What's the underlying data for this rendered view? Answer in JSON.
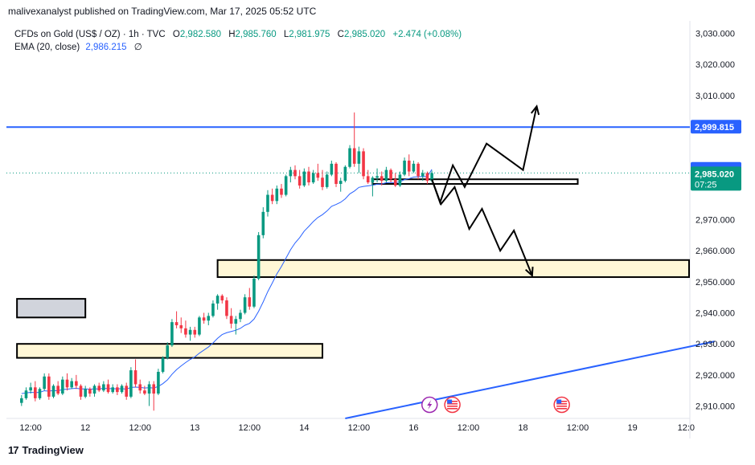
{
  "header": {
    "publish_text": "malivexanalyst published on TradingView.com, Mar 17, 2025 05:52 UTC"
  },
  "legend": {
    "symbol": "CFDs on Gold (US$ / OZ) · 1h · TVC",
    "o_label": "O",
    "o_value": "2,982.580",
    "h_label": "H",
    "h_value": "2,985.760",
    "l_label": "L",
    "l_value": "2,981.975",
    "c_label": "C",
    "c_value": "2,985.020",
    "change": "+2.474 (+0.08%)",
    "ema_label": "EMA (20, close)",
    "ema_value": "2,986.215",
    "ema_extra": "∅"
  },
  "footer": {
    "logo_mark": "17",
    "brand": "TradingView"
  },
  "colors": {
    "up": "#089981",
    "down": "#f23645",
    "ema": "#2962ff",
    "hline": "#2962ff",
    "zone_fill": "#fff7d6",
    "zone_gray": "#d1d4dc",
    "axis_text": "#131722",
    "grid": "#f0f3fa"
  },
  "chart_data": {
    "type": "candlestick",
    "symbol": "CFDs on Gold (US$ / OZ)",
    "interval": "1h",
    "ylim": [
      2906,
      3034
    ],
    "y_ticks": [
      2910,
      2920,
      2930,
      2940,
      2950,
      2960,
      2970,
      2980,
      2990,
      3000,
      3010,
      3020,
      3030
    ],
    "y_tick_labels": [
      "2,910.000",
      "2,920.000",
      "2,930.000",
      "2,940.000",
      "2,950.000",
      "2,960.000",
      "2,970.000",
      "",
      "",
      "",
      "3,010.000",
      "3,020.000",
      "3,030.000"
    ],
    "x_tick_labels": [
      "12:00",
      "12",
      "12:00",
      "13",
      "12:00",
      "14",
      "12:00",
      "16",
      "12:00",
      "18",
      "12:00",
      "19",
      "12:0"
    ],
    "x_tick_bars": [
      2,
      14,
      26,
      38,
      50,
      62,
      74,
      86,
      98,
      110,
      122,
      134,
      146
    ],
    "candles": [
      [
        2911.0,
        2913.5,
        2910.0,
        2912.5
      ],
      [
        2912.5,
        2916.0,
        2912.0,
        2915.0
      ],
      [
        2915.0,
        2917.5,
        2914.0,
        2916.0
      ],
      [
        2916.0,
        2918.0,
        2911.5,
        2912.5
      ],
      [
        2912.5,
        2916.0,
        2912.0,
        2915.5
      ],
      [
        2915.5,
        2920.5,
        2915.0,
        2919.5
      ],
      [
        2919.5,
        2920.5,
        2912.0,
        2913.0
      ],
      [
        2913.0,
        2917.0,
        2912.5,
        2916.5
      ],
      [
        2916.5,
        2918.0,
        2913.5,
        2914.0
      ],
      [
        2914.0,
        2919.5,
        2913.5,
        2918.5
      ],
      [
        2918.5,
        2920.5,
        2915.0,
        2916.0
      ],
      [
        2916.0,
        2919.0,
        2915.5,
        2918.0
      ],
      [
        2918.0,
        2920.0,
        2915.5,
        2916.5
      ],
      [
        2916.5,
        2917.0,
        2912.0,
        2913.0
      ],
      [
        2913.0,
        2916.5,
        2912.5,
        2915.5
      ],
      [
        2915.5,
        2916.0,
        2913.0,
        2914.0
      ],
      [
        2914.0,
        2917.0,
        2913.0,
        2916.5
      ],
      [
        2916.5,
        2917.5,
        2914.5,
        2915.0
      ],
      [
        2915.0,
        2918.0,
        2914.5,
        2917.0
      ],
      [
        2917.0,
        2918.5,
        2914.0,
        2914.5
      ],
      [
        2914.5,
        2917.0,
        2914.0,
        2916.0
      ],
      [
        2916.0,
        2917.0,
        2913.5,
        2914.5
      ],
      [
        2914.5,
        2917.0,
        2914.0,
        2916.5
      ],
      [
        2916.5,
        2917.5,
        2912.0,
        2913.0
      ],
      [
        2913.0,
        2922.5,
        2912.5,
        2921.5
      ],
      [
        2921.5,
        2925.0,
        2916.0,
        2917.0
      ],
      [
        2917.0,
        2918.5,
        2914.0,
        2915.0
      ],
      [
        2915.0,
        2916.5,
        2913.5,
        2914.0
      ],
      [
        2914.0,
        2918.0,
        2910.0,
        2917.0
      ],
      [
        2917.0,
        2918.0,
        2908.5,
        2914.0
      ],
      [
        2914.0,
        2922.0,
        2913.5,
        2921.0
      ],
      [
        2921.0,
        2926.0,
        2920.5,
        2925.5
      ],
      [
        2925.5,
        2930.5,
        2925.0,
        2929.5
      ],
      [
        2929.5,
        2938.0,
        2929.0,
        2937.0
      ],
      [
        2937.0,
        2940.5,
        2935.0,
        2936.0
      ],
      [
        2936.0,
        2938.5,
        2933.5,
        2935.0
      ],
      [
        2935.0,
        2937.5,
        2932.0,
        2933.0
      ],
      [
        2933.0,
        2935.5,
        2931.0,
        2934.5
      ],
      [
        2934.5,
        2935.5,
        2932.0,
        2933.0
      ],
      [
        2933.0,
        2939.0,
        2932.5,
        2938.5
      ],
      [
        2938.5,
        2940.0,
        2936.5,
        2937.5
      ],
      [
        2937.5,
        2940.0,
        2936.0,
        2939.0
      ],
      [
        2939.0,
        2944.0,
        2938.5,
        2943.0
      ],
      [
        2943.0,
        2946.0,
        2941.0,
        2945.5
      ],
      [
        2945.5,
        2946.0,
        2943.0,
        2944.0
      ],
      [
        2944.0,
        2945.0,
        2938.0,
        2939.0
      ],
      [
        2939.0,
        2941.5,
        2935.0,
        2936.5
      ],
      [
        2936.5,
        2939.0,
        2933.0,
        2938.0
      ],
      [
        2938.0,
        2941.0,
        2937.0,
        2940.0
      ],
      [
        2940.0,
        2946.0,
        2939.5,
        2945.0
      ],
      [
        2945.0,
        2948.0,
        2941.0,
        2942.0
      ],
      [
        2942.0,
        2952.0,
        2941.5,
        2951.0
      ],
      [
        2951.0,
        2966.0,
        2950.5,
        2965.0
      ],
      [
        2965.0,
        2974.0,
        2964.0,
        2972.5
      ],
      [
        2972.5,
        2979.5,
        2971.0,
        2978.0
      ],
      [
        2978.0,
        2980.0,
        2975.0,
        2976.0
      ],
      [
        2976.0,
        2981.0,
        2975.0,
        2980.0
      ],
      [
        2980.0,
        2981.5,
        2977.0,
        2978.0
      ],
      [
        2978.0,
        2984.5,
        2977.5,
        2984.0
      ],
      [
        2984.0,
        2987.0,
        2982.0,
        2986.0
      ],
      [
        2986.0,
        2987.5,
        2983.0,
        2984.0
      ],
      [
        2984.0,
        2986.0,
        2980.0,
        2981.0
      ],
      [
        2981.0,
        2986.5,
        2980.5,
        2985.5
      ],
      [
        2985.5,
        2987.0,
        2981.0,
        2982.0
      ],
      [
        2982.0,
        2986.0,
        2981.5,
        2985.0
      ],
      [
        2985.0,
        2988.0,
        2982.5,
        2983.5
      ],
      [
        2983.5,
        2986.0,
        2979.5,
        2980.5
      ],
      [
        2980.5,
        2985.5,
        2980.0,
        2984.5
      ],
      [
        2984.5,
        2989.0,
        2984.0,
        2988.0
      ],
      [
        2988.0,
        2988.5,
        2980.5,
        2981.5
      ],
      [
        2981.5,
        2983.5,
        2979.0,
        2982.5
      ],
      [
        2982.5,
        2987.5,
        2982.0,
        2987.0
      ],
      [
        2987.0,
        2994.0,
        2986.5,
        2993.0
      ],
      [
        2993.0,
        3004.5,
        2987.0,
        2988.0
      ],
      [
        2988.0,
        2993.5,
        2985.0,
        2992.0
      ],
      [
        2992.0,
        2993.0,
        2983.0,
        2984.0
      ],
      [
        2984.0,
        2986.0,
        2981.5,
        2982.0
      ],
      [
        2982.0,
        2984.0,
        2977.5,
        2983.5
      ],
      [
        2983.5,
        2986.5,
        2982.0,
        2984.0
      ],
      [
        2984.0,
        2985.5,
        2981.0,
        2982.5
      ],
      [
        2982.5,
        2987.0,
        2982.0,
        2986.0
      ],
      [
        2986.0,
        2986.5,
        2982.0,
        2983.0
      ],
      [
        2983.0,
        2985.0,
        2980.5,
        2981.0
      ],
      [
        2981.0,
        2985.5,
        2980.5,
        2984.5
      ],
      [
        2984.5,
        2990.0,
        2984.0,
        2989.0
      ],
      [
        2989.0,
        2991.0,
        2984.0,
        2985.5
      ],
      [
        2985.5,
        2989.0,
        2985.0,
        2988.0
      ],
      [
        2988.0,
        2988.5,
        2983.0,
        2984.0
      ],
      [
        2984.0,
        2986.0,
        2982.5,
        2985.0
      ],
      [
        2985.0,
        2985.5,
        2981.5,
        2982.5
      ],
      [
        2982.5,
        2985.8,
        2982.0,
        2985.0
      ]
    ],
    "ema20": [
      2914.0,
      2914.2,
      2914.4,
      2914.3,
      2914.4,
      2914.9,
      2914.8,
      2915.0,
      2914.9,
      2915.3,
      2915.4,
      2915.6,
      2915.7,
      2915.5,
      2915.5,
      2915.4,
      2915.5,
      2915.5,
      2915.7,
      2915.6,
      2915.6,
      2915.5,
      2915.6,
      2915.4,
      2916.0,
      2916.1,
      2916.0,
      2915.8,
      2915.9,
      2915.8,
      2916.3,
      2917.2,
      2918.4,
      2920.2,
      2921.7,
      2922.9,
      2924.0,
      2925.0,
      2925.8,
      2927.0,
      2928.0,
      2929.0,
      2930.3,
      2931.8,
      2933.0,
      2933.6,
      2934.0,
      2934.4,
      2935.0,
      2936.0,
      2936.6,
      2938.0,
      2940.5,
      2943.5,
      2946.8,
      2949.6,
      2952.5,
      2954.9,
      2957.6,
      2960.3,
      2962.5,
      2964.2,
      2966.3,
      2967.8,
      2969.4,
      2970.7,
      2971.6,
      2972.8,
      2974.3,
      2974.9,
      2975.6,
      2976.7,
      2978.3,
      2979.2,
      2980.4,
      2980.7,
      2980.9,
      2981.1,
      2981.4,
      2981.5,
      2981.9,
      2982.0,
      2981.9,
      2982.2,
      2982.9,
      2983.2,
      2983.7,
      2983.8,
      2983.9,
      2983.8,
      2986.2
    ],
    "horizontal_lines": [
      {
        "name": "resistance-line",
        "price": 2999.815,
        "label": "2,999.815",
        "color": "#2962ff"
      }
    ],
    "price_labels": [
      {
        "name": "ema-price-label",
        "price": 2986.215,
        "label": "2,986.215",
        "color": "#2962ff"
      },
      {
        "name": "last-price-label",
        "price": 2985.02,
        "label": "2,985.020",
        "countdown": "07:25",
        "color": "#089981"
      }
    ],
    "zones": [
      {
        "name": "zone-support-upper",
        "x0": 77,
        "x1": 122,
        "top": 2983.0,
        "bottom": 2981.5,
        "fill": "#ffffff"
      },
      {
        "name": "zone-demand-middle",
        "x0": 43,
        "x1": 152,
        "top": 2957.0,
        "bottom": 2951.5,
        "fill": "#fff7d6"
      },
      {
        "name": "zone-gray-left",
        "x0": -1,
        "x1": 14,
        "top": 2944.5,
        "bottom": 2938.5,
        "fill": "#d1d4dc"
      },
      {
        "name": "zone-demand-lower",
        "x0": -1,
        "x1": 66,
        "top": 2930.0,
        "bottom": 2925.5,
        "fill": "#fff7d6"
      }
    ],
    "trendline": {
      "x0": 71,
      "y0": 2906.0,
      "x1": 152,
      "y1": 2930.8
    },
    "projection_up": [
      [
        90,
        2983.0
      ],
      [
        91.8,
        2975.5
      ],
      [
        94.6,
        2987.5
      ],
      [
        97.2,
        2980.5
      ],
      [
        102,
        2994.5
      ],
      [
        110,
        2986.0
      ],
      [
        113,
        3006.5
      ]
    ],
    "projection_down": [
      [
        90,
        2983.0
      ],
      [
        92,
        2975.0
      ],
      [
        95,
        2980.5
      ],
      [
        98.2,
        2967.0
      ],
      [
        101,
        2973.5
      ],
      [
        105,
        2960.0
      ],
      [
        108,
        2966.5
      ],
      [
        112,
        2952.0
      ]
    ],
    "event_icons": [
      {
        "name": "lightning-event-icon",
        "bar": 89.5
      },
      {
        "name": "us-flag-event-icon",
        "bar": 94.5
      },
      {
        "name": "us-flag-event-icon",
        "bar": 118.5
      }
    ]
  }
}
